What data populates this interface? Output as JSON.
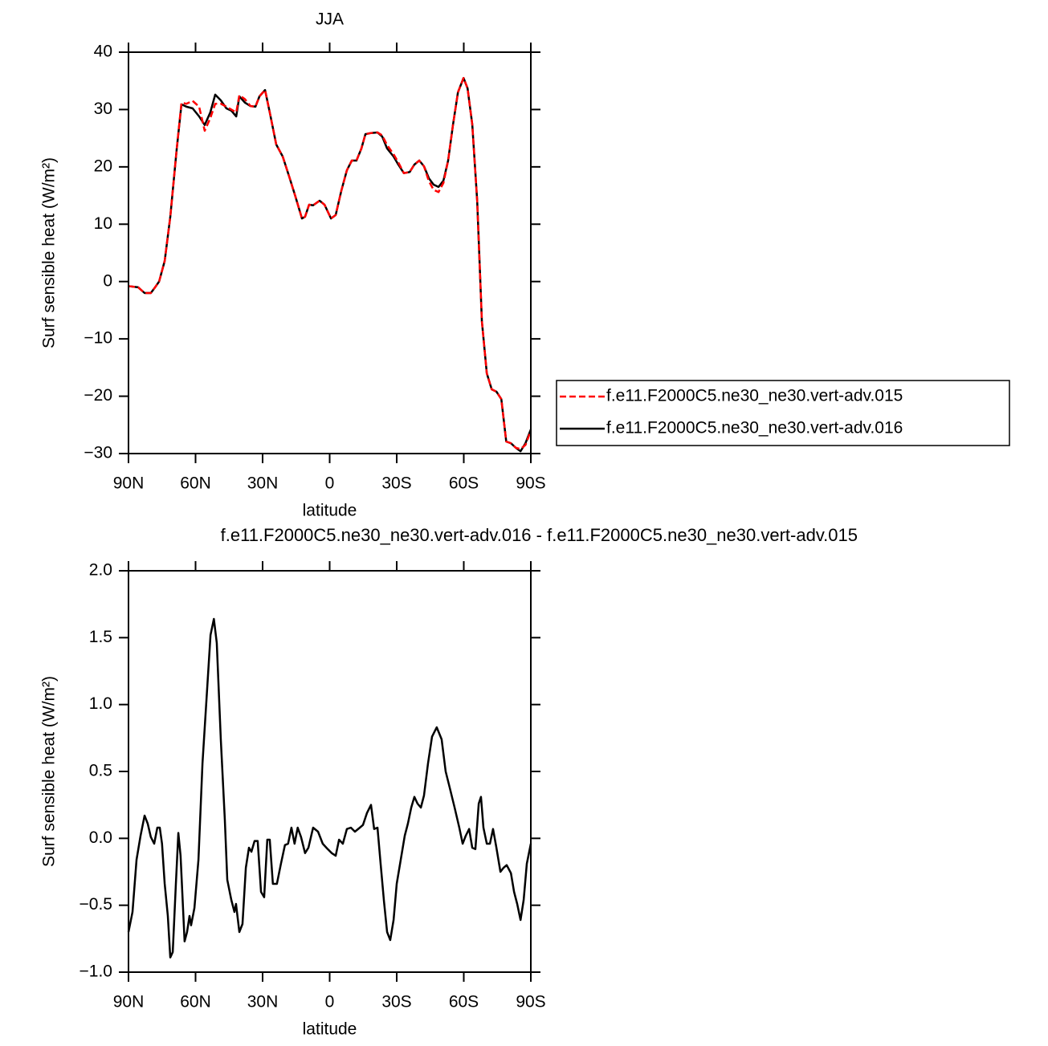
{
  "chart_data": [
    {
      "type": "line",
      "title": "JJA",
      "xlabel": "latitude",
      "ylabel": "Surf sensible heat (W/m²)",
      "x": [
        90,
        85.7,
        82.8,
        80,
        78.1,
        76.3,
        73.8,
        71.3,
        68.4,
        66.3,
        64.1,
        61.3,
        58.4,
        55.9,
        53.4,
        51.2,
        48.7,
        46.2,
        44,
        41.8,
        40.4,
        37.9,
        35.4,
        33.2,
        31.4,
        28.9,
        26.8,
        23.9,
        21,
        18.1,
        15.3,
        12.4,
        11,
        9.2,
        7.4,
        4.5,
        2.3,
        -0.6,
        -2.7,
        -5.2,
        -7.7,
        -9.9,
        -12,
        -14.2,
        -16,
        -18.5,
        -21.4,
        -23.5,
        -25.7,
        -28.6,
        -30.7,
        -33.2,
        -35.8,
        -37.9,
        -40.1,
        -42.2,
        -44.4,
        -46.5,
        -48.7,
        -50.9,
        -53,
        -55.2,
        -57.4,
        -59.9,
        -61.7,
        -63.8,
        -66,
        -68.1,
        -70.3,
        -72.5,
        -74.6,
        -76.8,
        -79,
        -81.1,
        -83.3,
        -85.4,
        -87.6,
        -90
      ],
      "series": [
        {
          "name": "f.e11.F2000C5.ne30_ne30.vert-adv.015",
          "color": "#ff0000",
          "line_style": "dashed",
          "values": [
            -0.8,
            -1.0,
            -2.0,
            -2.0,
            -1.0,
            0,
            3.6,
            11.3,
            23.2,
            31.2,
            31.0,
            31.5,
            30.5,
            26.3,
            28.5,
            31.0,
            31.0,
            30.5,
            30.0,
            29.5,
            32.5,
            31.8,
            30.6,
            30.5,
            32.3,
            33.4,
            29.5,
            23.9,
            21.8,
            18.3,
            14.8,
            11.0,
            11.3,
            13.4,
            13.3,
            14.1,
            13.4,
            11.0,
            11.6,
            15.8,
            19.4,
            21.1,
            21.1,
            23.2,
            25.7,
            25.9,
            26.0,
            25.5,
            23.8,
            22.2,
            20.8,
            18.9,
            19.1,
            20.4,
            21.1,
            20.1,
            17.5,
            16.0,
            15.6,
            17.2,
            21.1,
            27.4,
            33.0,
            35.5,
            33.7,
            27.4,
            14.1,
            -6.9,
            -16.0,
            -18.8,
            -19.2,
            -20.5,
            -27.9,
            -28.2,
            -29.0,
            -29.2,
            -28.5,
            -26.0
          ]
        },
        {
          "name": "f.e11.F2000C5.ne30_ne30.vert-adv.016",
          "color": "#000000",
          "line_style": "solid",
          "values": [
            -0.8,
            -1.0,
            -2.0,
            -2.0,
            -1.0,
            0,
            3.6,
            11.3,
            23.2,
            30.9,
            30.5,
            30.2,
            28.8,
            27.3,
            29.5,
            32.6,
            31.6,
            30.2,
            29.8,
            28.8,
            32.3,
            31.2,
            30.6,
            30.5,
            32.3,
            33.4,
            29.5,
            23.9,
            21.8,
            18.3,
            14.8,
            11.0,
            11.3,
            13.4,
            13.3,
            14.1,
            13.4,
            11.0,
            11.6,
            15.8,
            19.4,
            21.1,
            21.1,
            23.2,
            25.7,
            25.9,
            26.0,
            25.3,
            23.2,
            21.8,
            20.4,
            18.9,
            19.1,
            20.4,
            21.1,
            20.1,
            18.0,
            16.9,
            16.5,
            17.6,
            21.1,
            27.4,
            33.0,
            35.5,
            33.7,
            27.4,
            14.1,
            -6.9,
            -16.0,
            -18.8,
            -19.2,
            -20.5,
            -27.9,
            -28.2,
            -29.0,
            -29.6,
            -28.2,
            -25.8
          ]
        }
      ],
      "xlim": [
        90,
        -90
      ],
      "xticks": [
        {
          "value": 90,
          "label": "90N"
        },
        {
          "value": 60,
          "label": "60N"
        },
        {
          "value": 30,
          "label": "30N"
        },
        0,
        {
          "value": -30,
          "label": "30S"
        },
        {
          "value": -60,
          "label": "60S"
        },
        {
          "value": -90,
          "label": "90S"
        }
      ],
      "ylim": [
        -30,
        40
      ],
      "yticks": [
        {
          "value": -30,
          "label": "−30"
        },
        {
          "value": -20,
          "label": "−20"
        },
        {
          "value": -10,
          "label": "−10"
        },
        0,
        10,
        20,
        30,
        40
      ],
      "legend": "outside-right"
    },
    {
      "type": "line",
      "title": "f.e11.F2000C5.ne30_ne30.vert-adv.016 - f.e11.F2000C5.ne30_ne30.vert-adv.015",
      "xlabel": "latitude",
      "ylabel": "Surf sensible heat (W/m²)",
      "x": [
        90,
        88.2,
        86.4,
        84.6,
        82.8,
        81.4,
        80,
        78.5,
        77.1,
        76,
        75,
        73.8,
        72.4,
        71.3,
        70.2,
        68.8,
        67.7,
        66.7,
        64.9,
        63.8,
        62.7,
        62,
        60.5,
        58.7,
        56.9,
        55.1,
        53.3,
        51.8,
        50.5,
        48.7,
        46.9,
        45.8,
        44,
        42.6,
        41.9,
        40.4,
        39,
        37.5,
        36.1,
        35,
        33.6,
        32.2,
        30.7,
        29.3,
        27.9,
        26.8,
        25.4,
        23.6,
        21.8,
        20,
        18.6,
        17.1,
        15.7,
        14.3,
        12.8,
        11,
        9.5,
        7.4,
        5.2,
        3.1,
        0.9,
        -0.9,
        -2.7,
        -4.2,
        -5.9,
        -7.7,
        -9.5,
        -11.3,
        -13.5,
        -14.9,
        -16.7,
        -18.5,
        -19.9,
        -21.4,
        -22.8,
        -24.3,
        -25.7,
        -27.1,
        -28.6,
        -30,
        -31.8,
        -33.6,
        -35,
        -36.5,
        -37.9,
        -39.3,
        -40.8,
        -42.2,
        -44,
        -45.8,
        -47.9,
        -50.1,
        -51.9,
        -53.7,
        -55.9,
        -58,
        -59.5,
        -60.9,
        -62.4,
        -63.8,
        -65.2,
        -66.7,
        -67.7,
        -68.8,
        -70.3,
        -71.7,
        -73.1,
        -74.6,
        -76.4,
        -77.8,
        -79.2,
        -81.1,
        -82.5,
        -83.9,
        -85.4,
        -86.8,
        -88.2,
        -90
      ],
      "series": [
        {
          "color": "#000000",
          "line_style": "solid",
          "values": [
            -0.7,
            -0.55,
            -0.16,
            0.02,
            0.17,
            0.11,
            0.01,
            -0.04,
            0.08,
            0.08,
            -0.04,
            -0.34,
            -0.58,
            -0.89,
            -0.85,
            -0.34,
            0.04,
            -0.13,
            -0.77,
            -0.7,
            -0.58,
            -0.65,
            -0.52,
            -0.16,
            0.56,
            1.04,
            1.52,
            1.64,
            1.46,
            0.74,
            0.14,
            -0.31,
            -0.46,
            -0.55,
            -0.49,
            -0.7,
            -0.64,
            -0.22,
            -0.07,
            -0.1,
            -0.02,
            -0.02,
            -0.4,
            -0.44,
            -0.01,
            -0.01,
            -0.34,
            -0.34,
            -0.19,
            -0.05,
            -0.04,
            0.08,
            -0.04,
            0.08,
            0.01,
            -0.11,
            -0.07,
            0.08,
            0.05,
            -0.04,
            -0.08,
            -0.11,
            -0.13,
            -0.01,
            -0.04,
            0.07,
            0.08,
            0.05,
            0.08,
            0.1,
            0.19,
            0.25,
            0.07,
            0.08,
            -0.19,
            -0.47,
            -0.7,
            -0.76,
            -0.61,
            -0.34,
            -0.16,
            0.02,
            0.11,
            0.23,
            0.31,
            0.26,
            0.23,
            0.32,
            0.56,
            0.76,
            0.83,
            0.74,
            0.5,
            0.38,
            0.23,
            0.08,
            -0.04,
            0.02,
            0.07,
            -0.07,
            -0.08,
            0.26,
            0.31,
            0.08,
            -0.04,
            -0.04,
            0.07,
            -0.07,
            -0.25,
            -0.22,
            -0.2,
            -0.26,
            -0.4,
            -0.49,
            -0.61,
            -0.46,
            -0.19,
            -0.04
          ]
        }
      ],
      "xlim": [
        90,
        -90
      ],
      "xticks": [
        {
          "value": 90,
          "label": "90N"
        },
        {
          "value": 60,
          "label": "60N"
        },
        {
          "value": 30,
          "label": "30N"
        },
        0,
        {
          "value": -30,
          "label": "30S"
        },
        {
          "value": -60,
          "label": "60S"
        },
        {
          "value": -90,
          "label": "90S"
        }
      ],
      "ylim": [
        -1.0,
        2.0
      ],
      "yticks": [
        {
          "value": -1.0,
          "label": "−1.0"
        },
        {
          "value": -0.5,
          "label": "−0.5"
        },
        {
          "value": 0,
          "label": "0.0"
        },
        0.5,
        {
          "value": 1.0,
          "label": "1.0"
        },
        1.5,
        {
          "value": 2.0,
          "label": "2.0"
        }
      ]
    }
  ]
}
